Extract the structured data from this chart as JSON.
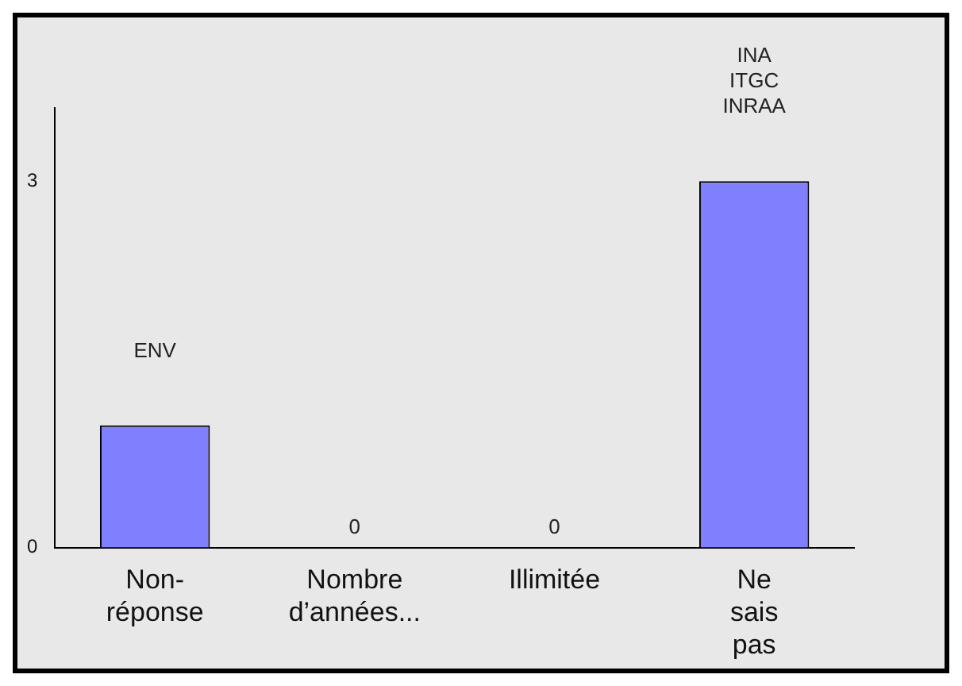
{
  "chart_data": {
    "type": "bar",
    "categories": [
      "Non-réponse",
      "Nombre d’années...",
      "Illimitée",
      "Ne sais pas"
    ],
    "values": [
      1,
      0,
      0,
      3
    ],
    "color": "#8080ff",
    "value_labels": [
      "ENV",
      "0",
      "0",
      "INA\nITGC\nINRAA"
    ],
    "ylim": [
      0,
      3.6
    ],
    "yticks": [
      0,
      3
    ],
    "grid": false,
    "legend": false
  }
}
